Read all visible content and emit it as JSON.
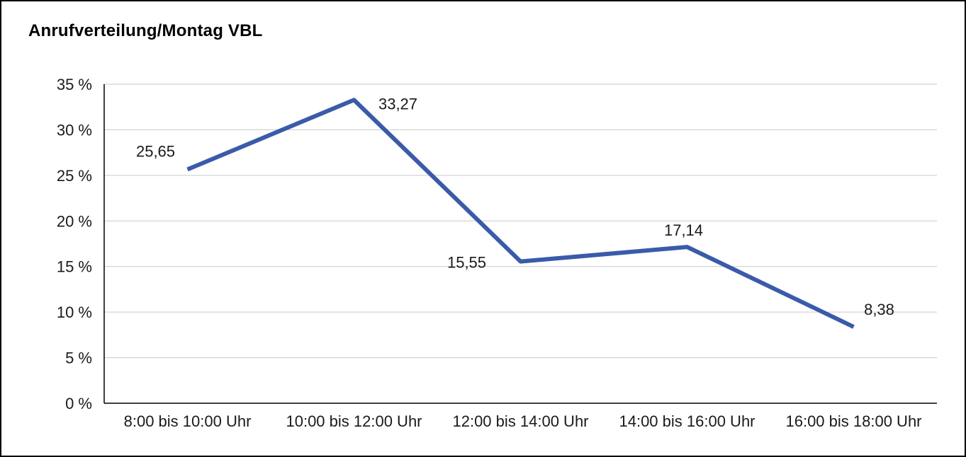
{
  "chart_data": {
    "type": "line",
    "title": "Anrufverteilung/Montag VBL",
    "categories": [
      "8:00 bis 10:00 Uhr",
      "10:00 bis 12:00 Uhr",
      "12:00 bis 14:00 Uhr",
      "14:00 bis 16:00 Uhr",
      "16:00 bis 18:00 Uhr"
    ],
    "values": [
      25.65,
      33.27,
      15.55,
      17.14,
      8.38
    ],
    "value_labels": [
      "25,65",
      "33,27",
      "15,55",
      "17,14",
      "8,38"
    ],
    "xlabel": "",
    "ylabel": "",
    "ylim": [
      0,
      35
    ],
    "ytick_step": 5,
    "ytick_labels": [
      "0 %",
      "5 %",
      "10 %",
      "15 %",
      "20 %",
      "25 %",
      "30 %",
      "35 %"
    ],
    "grid": true,
    "legend_position": "none",
    "line_color": "#3A5BA9",
    "grid_color": "#c9c9c9",
    "axis_color": "#000000",
    "label_color": "#1a1a1a"
  }
}
